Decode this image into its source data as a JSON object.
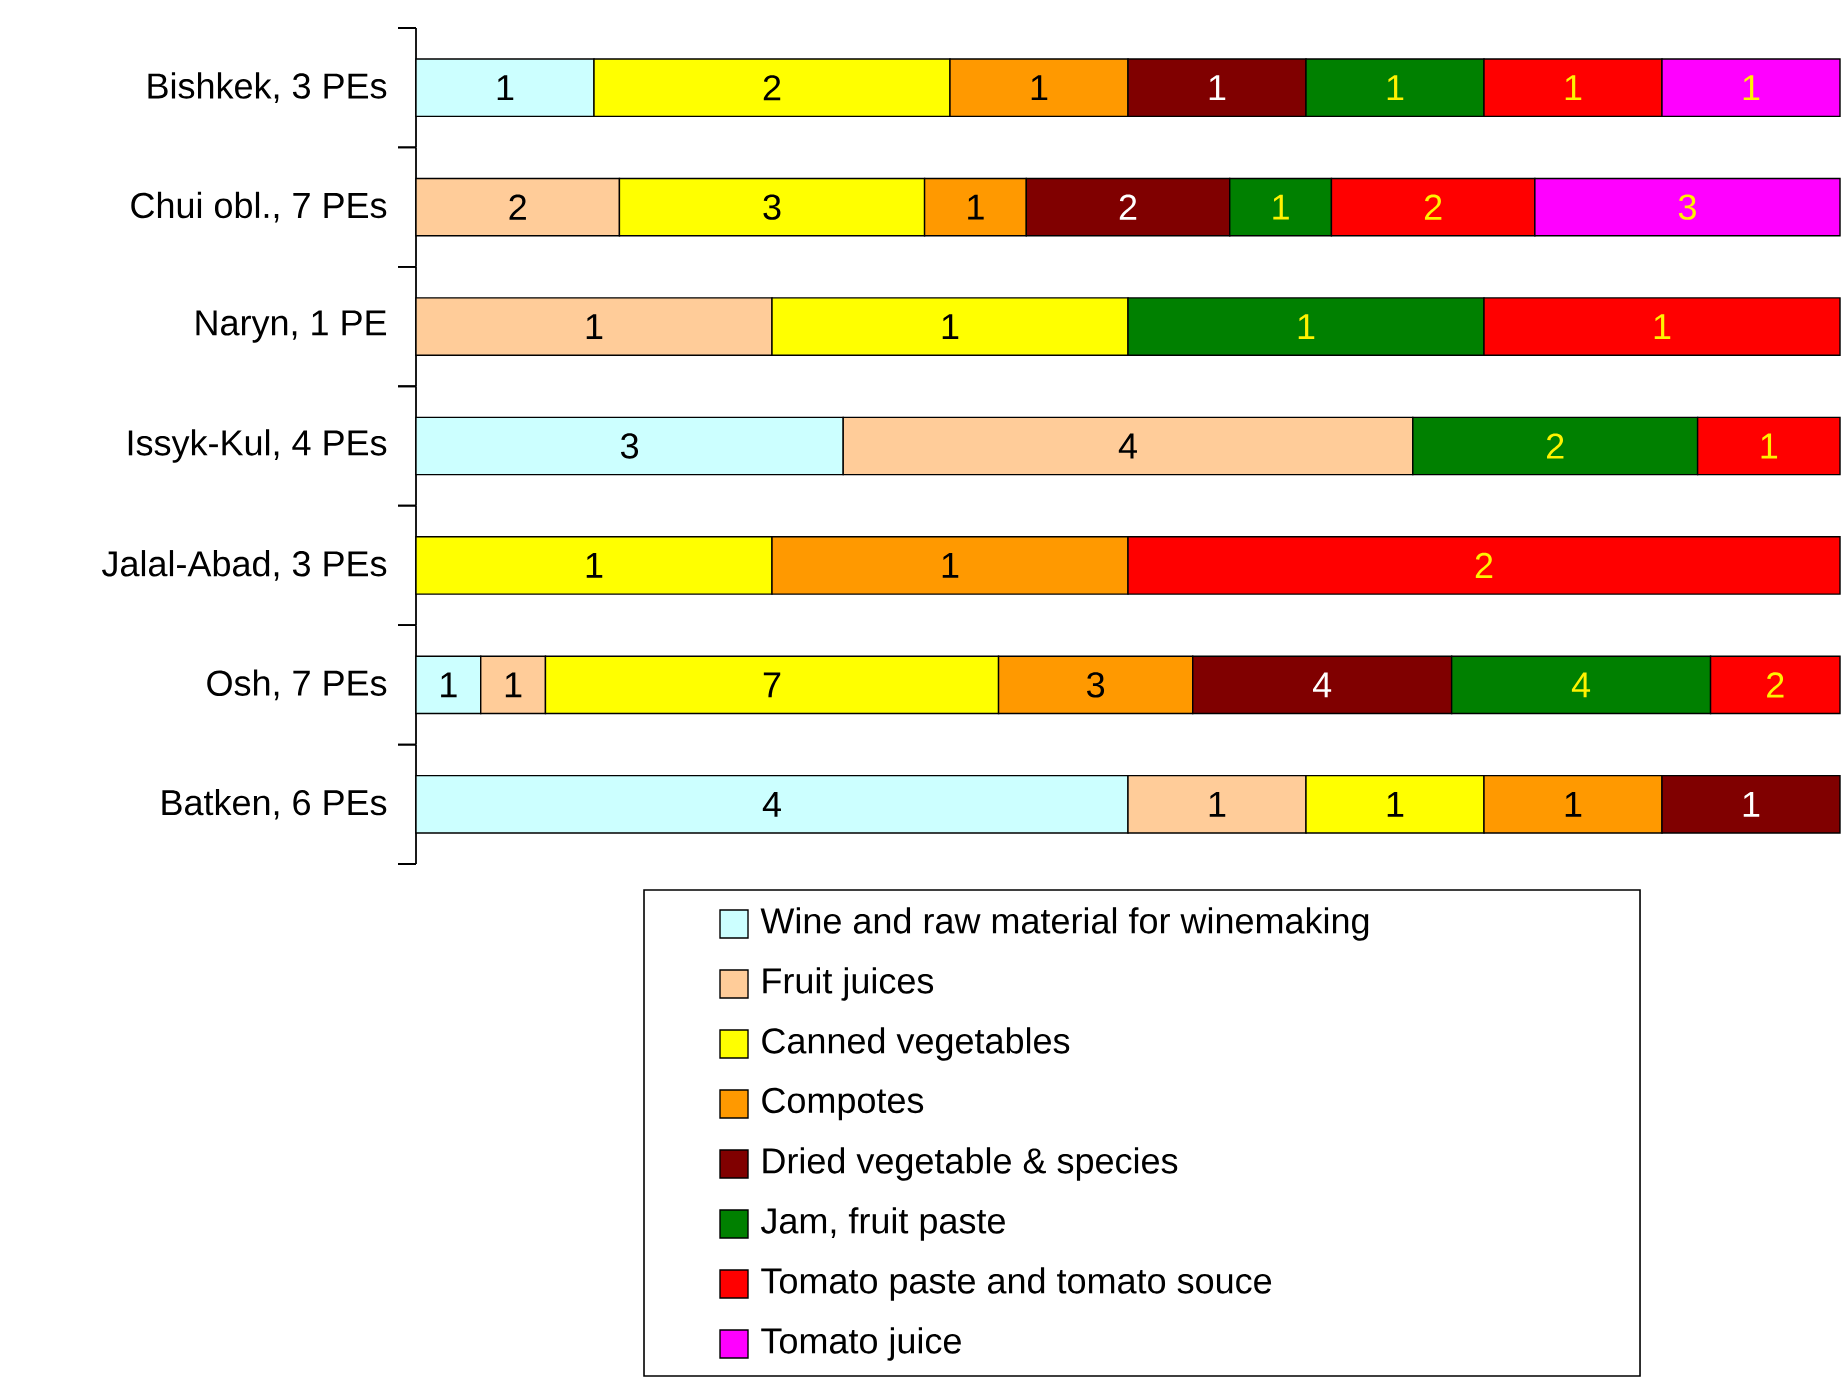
{
  "chart_data": [
    {
      "type": "bar",
      "orientation": "horizontal",
      "stacked": true,
      "data_labels": true,
      "tick_labels": "y",
      "categories": [
        "Bishkek, 3 PEs"
      ],
      "xlim": [
        0,
        8
      ],
      "series": [
        {
          "color": "#ccffff",
          "values": [
            1
          ]
        },
        {
          "color": "#ffcc99",
          "values": [
            null
          ]
        },
        {
          "color": "#ffff00",
          "values": [
            2
          ]
        },
        {
          "color": "#ff9900",
          "values": [
            1
          ]
        },
        {
          "color": "#800000",
          "values": [
            1
          ]
        },
        {
          "color": "#008000",
          "values": [
            1
          ]
        },
        {
          "color": "#ff0000",
          "values": [
            1
          ]
        },
        {
          "color": "#ff00ff",
          "values": [
            1
          ]
        }
      ]
    },
    {
      "type": "bar",
      "orientation": "horizontal",
      "stacked": true,
      "data_labels": true,
      "tick_labels": "y",
      "categories": [
        "Chui obl., 7 PEs"
      ],
      "xlim": [
        0,
        14
      ],
      "series": [
        {
          "color": "#ccffff",
          "values": [
            null
          ]
        },
        {
          "color": "#ffcc99",
          "values": [
            2
          ]
        },
        {
          "color": "#ffff00",
          "values": [
            3
          ]
        },
        {
          "color": "#ff9900",
          "values": [
            1
          ]
        },
        {
          "color": "#800000",
          "values": [
            2
          ]
        },
        {
          "color": "#008000",
          "values": [
            1
          ]
        },
        {
          "color": "#ff0000",
          "values": [
            2
          ]
        },
        {
          "color": "#ff00ff",
          "values": [
            3
          ]
        }
      ]
    },
    {
      "type": "bar",
      "orientation": "horizontal",
      "stacked": true,
      "data_labels": true,
      "tick_labels": "y",
      "categories": [
        "Naryn, 1 PE"
      ],
      "xlim": [
        0,
        4
      ],
      "series": [
        {
          "color": "#ccffff",
          "values": [
            null
          ]
        },
        {
          "color": "#ffcc99",
          "values": [
            1
          ]
        },
        {
          "color": "#ffff00",
          "values": [
            1
          ]
        },
        {
          "color": "#ff9900",
          "values": [
            null
          ]
        },
        {
          "color": "#800000",
          "values": [
            null
          ]
        },
        {
          "color": "#008000",
          "values": [
            1
          ]
        },
        {
          "color": "#ff0000",
          "values": [
            1
          ]
        },
        {
          "color": "#ff00ff",
          "values": [
            null
          ]
        }
      ]
    },
    {
      "type": "bar",
      "orientation": "horizontal",
      "stacked": true,
      "data_labels": true,
      "tick_labels": "y",
      "categories": [
        "Issyk-Kul, 4 PEs"
      ],
      "xlim": [
        0,
        10
      ],
      "series": [
        {
          "color": "#ccffff",
          "values": [
            3
          ]
        },
        {
          "color": "#ffcc99",
          "values": [
            4
          ]
        },
        {
          "color": "#ffff00",
          "values": [
            null
          ]
        },
        {
          "color": "#ff9900",
          "values": [
            null
          ]
        },
        {
          "color": "#800000",
          "values": [
            null
          ]
        },
        {
          "color": "#008000",
          "values": [
            2
          ]
        },
        {
          "color": "#ff0000",
          "values": [
            1
          ]
        },
        {
          "color": "#ff00ff",
          "values": [
            null
          ]
        }
      ]
    },
    {
      "type": "bar",
      "orientation": "horizontal",
      "stacked": true,
      "data_labels": true,
      "tick_labels": "y",
      "categories": [
        "Jalal-Abad, 3 PEs"
      ],
      "xlim": [
        0,
        4
      ],
      "series": [
        {
          "color": "#ccffff",
          "values": [
            null
          ]
        },
        {
          "color": "#ffcc99",
          "values": [
            null
          ]
        },
        {
          "color": "#ffff00",
          "values": [
            1
          ]
        },
        {
          "color": "#ff9900",
          "values": [
            1
          ]
        },
        {
          "color": "#800000",
          "values": [
            null
          ]
        },
        {
          "color": "#008000",
          "values": [
            null
          ]
        },
        {
          "color": "#ff0000",
          "values": [
            2
          ]
        },
        {
          "color": "#ff00ff",
          "values": [
            null
          ]
        }
      ]
    },
    {
      "type": "bar",
      "orientation": "horizontal",
      "stacked": true,
      "data_labels": true,
      "tick_labels": "y",
      "categories": [
        "Osh, 7 PEs"
      ],
      "xlim": [
        0,
        22
      ],
      "series": [
        {
          "color": "#ccffff",
          "values": [
            1
          ]
        },
        {
          "color": "#ffcc99",
          "values": [
            1
          ]
        },
        {
          "color": "#ffff00",
          "values": [
            7
          ]
        },
        {
          "color": "#ff9900",
          "values": [
            3
          ]
        },
        {
          "color": "#800000",
          "values": [
            4
          ]
        },
        {
          "color": "#008000",
          "values": [
            4
          ]
        },
        {
          "color": "#ff0000",
          "values": [
            2
          ]
        },
        {
          "color": "#ff00ff",
          "values": [
            null
          ]
        }
      ]
    },
    {
      "type": "bar",
      "orientation": "horizontal",
      "stacked": true,
      "data_labels": true,
      "tick_labels": "y",
      "legend": "bottom",
      "categories": [
        "Batken, 6 PEs"
      ],
      "xlim": [
        0,
        8
      ],
      "series": [
        {
          "name": "Wine and raw material for winemaking",
          "color": "#ccffff",
          "values": [
            4
          ]
        },
        {
          "name": "Fruit juices",
          "color": "#ffcc99",
          "values": [
            1
          ]
        },
        {
          "name": "Canned vegetables",
          "color": "#ffff00",
          "values": [
            1
          ]
        },
        {
          "name": "Compotes",
          "color": "#ff9900",
          "values": [
            1
          ]
        },
        {
          "name": "Dried vegetable & species",
          "color": "#800000",
          "values": [
            1
          ]
        },
        {
          "name": "Jam, fruit paste",
          "color": "#008000",
          "values": [
            null
          ]
        },
        {
          "name": "Tomato paste and tomato souce",
          "color": "#ff0000",
          "values": [
            null
          ]
        },
        {
          "name": "Tomato juice",
          "color": "#ff00ff",
          "values": [
            null
          ]
        }
      ]
    }
  ]
}
